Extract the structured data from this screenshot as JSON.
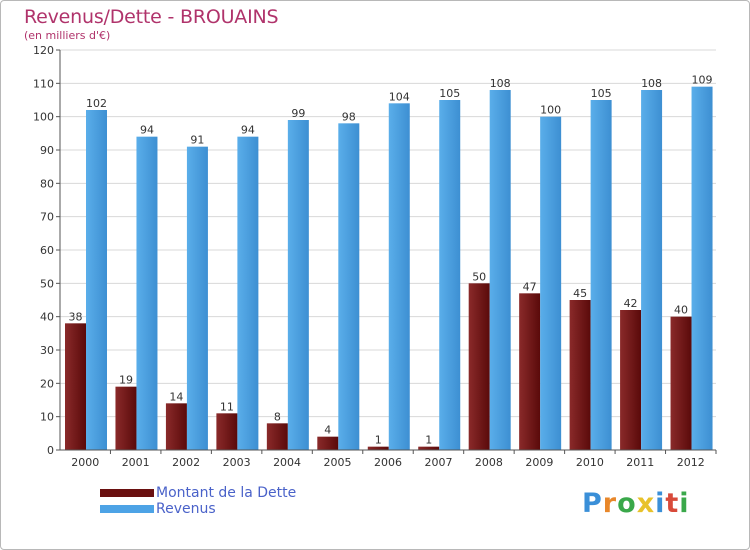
{
  "header": {
    "title": "Revenus/Dette - BROUAINS",
    "subtitle": "(en milliers d'€)"
  },
  "chart_data": {
    "type": "bar",
    "categories": [
      "2000",
      "2001",
      "2002",
      "2003",
      "2004",
      "2005",
      "2006",
      "2007",
      "2008",
      "2009",
      "2010",
      "2011",
      "2012"
    ],
    "series": [
      {
        "name": "Montant de la Dette",
        "color": "#7a1a1a",
        "values": [
          38,
          19,
          14,
          11,
          8,
          4,
          1,
          1,
          50,
          47,
          45,
          42,
          40
        ]
      },
      {
        "name": "Revenus",
        "color": "#4da3e6",
        "values": [
          102,
          94,
          91,
          94,
          99,
          98,
          104,
          105,
          108,
          100,
          105,
          108,
          109
        ]
      }
    ],
    "yticks": [
      0,
      10,
      20,
      30,
      40,
      50,
      60,
      70,
      80,
      90,
      100,
      110,
      120
    ],
    "ylim": [
      0,
      120
    ],
    "grid": true,
    "legend_position": "bottom-left"
  },
  "logo": {
    "letters": [
      "P",
      "r",
      "o",
      "x",
      "i",
      "t",
      "i"
    ],
    "colors": [
      "#3a8fd8",
      "#e8872a",
      "#3aa84a",
      "#e8c22a",
      "#3a8fd8",
      "#d84a3a",
      "#3aa84a"
    ]
  }
}
